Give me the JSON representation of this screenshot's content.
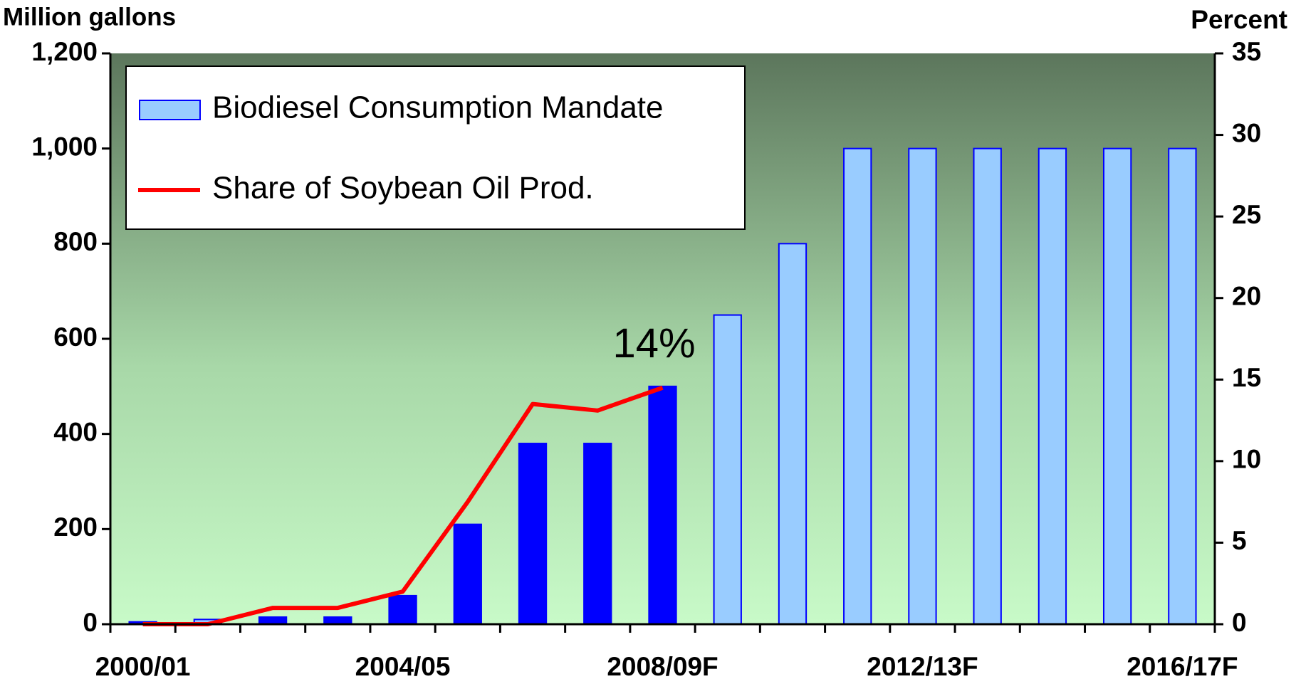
{
  "chart_data": {
    "type": "bar",
    "y_label": "Million gallons",
    "y2_label": "Percent",
    "annotation": "14%",
    "categories": [
      "2000/01",
      null,
      null,
      null,
      "2004/05",
      null,
      null,
      null,
      "2008/09F",
      null,
      null,
      null,
      "2012/13F",
      null,
      null,
      null,
      "2016/17F"
    ],
    "series": [
      {
        "name": "Biodiesel Consumption Mandate",
        "color": "#99ccff",
        "edge": "#0000ff",
        "colors": [
          "#0000ff",
          "#99ccff",
          "#0000ff",
          "#0000ff",
          "#0000ff",
          "#0000ff",
          "#0000ff",
          "#0000ff",
          "#0000ff",
          "#99ccff",
          "#99ccff",
          "#99ccff",
          "#99ccff",
          "#99ccff",
          "#99ccff",
          "#99ccff",
          "#99ccff"
        ],
        "values": [
          5,
          10,
          15,
          15,
          60,
          210,
          380,
          380,
          500,
          650,
          800,
          1000,
          1000,
          1000,
          1000,
          1000,
          1000
        ]
      },
      {
        "name": "Share of Soybean Oil Prod.",
        "color": "#ff0000",
        "axis": "y2",
        "type": "line",
        "values": [
          0,
          0,
          1,
          1,
          2,
          7.5,
          13.5,
          13.1,
          14.5,
          null,
          null,
          null,
          null,
          null,
          null,
          null,
          null
        ]
      }
    ],
    "ylim": [
      0,
      1200
    ],
    "yticks": [
      0,
      200,
      400,
      600,
      800,
      {
        "value": 1000,
        "label": "1,000"
      },
      {
        "value": 1200,
        "label": "1,200"
      }
    ],
    "y2lim": [
      0,
      35
    ],
    "y2ticks": [
      0,
      5,
      10,
      15,
      20,
      25,
      30,
      35
    ],
    "legend": "upper left"
  }
}
